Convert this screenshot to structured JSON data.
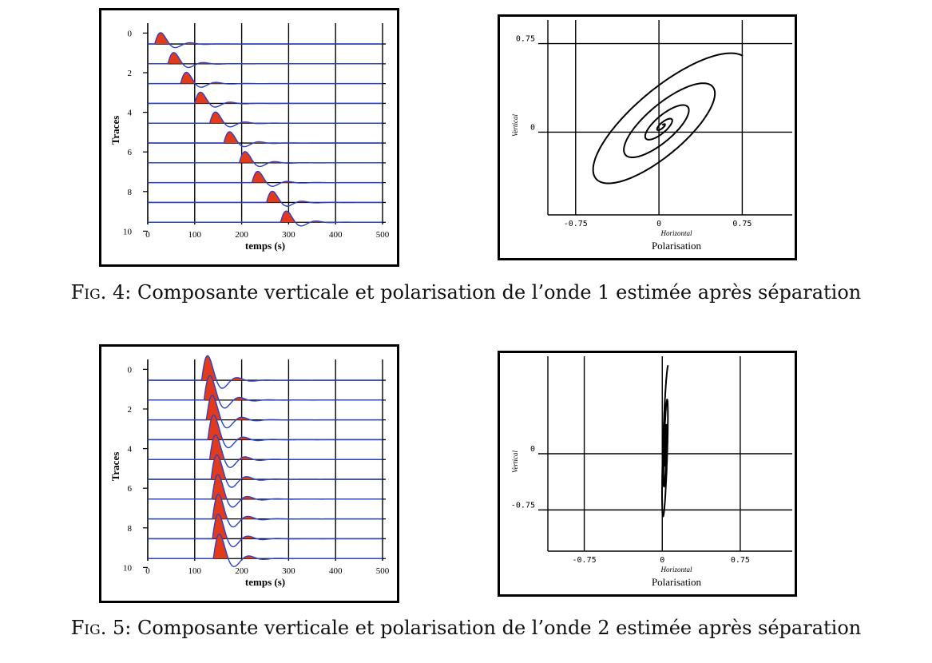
{
  "figures": [
    {
      "caption_prefix": "Fig. 4:",
      "caption_text": "Composante verticale et polarisation de l’onde 1 estimée après séparation"
    },
    {
      "caption_prefix": "Fig. 5:",
      "caption_text": "Composante verticale et polarisation de l’onde 2 estimée après séparation"
    }
  ],
  "colors": {
    "trace": "#2a43c8",
    "fill": "#e23a1a",
    "axis": "#000000"
  },
  "chart_data": [
    {
      "type": "line",
      "panel": "fig4-traces",
      "xlabel": "temps (s)",
      "ylabel": "Traces",
      "xlim": [
        0,
        500
      ],
      "ylim": [
        0,
        10
      ],
      "x_ticks": [
        "0",
        "100",
        "200",
        "300",
        "400",
        "500"
      ],
      "y_ticks": [
        "0",
        "2",
        "4",
        "6",
        "8",
        "10"
      ],
      "grid": true,
      "n_traces": 10,
      "trace_onsets_s": [
        15,
        43,
        70,
        100,
        132,
        162,
        195,
        222,
        253,
        283
      ],
      "pulse_amplitude": 1.1
    },
    {
      "type": "line",
      "panel": "fig4-polarisation",
      "title": "Polarisation",
      "xlabel": "Horizontal",
      "ylabel": "Vertical",
      "x_ticks": [
        "-0.75",
        "0",
        "0.75"
      ],
      "y_ticks": [
        "0",
        "0.75"
      ],
      "xlim": [
        -1.0,
        1.2
      ],
      "ylim": [
        -0.7,
        0.95
      ],
      "grid": true,
      "ellipse_orientation_deg": 45
    },
    {
      "type": "line",
      "panel": "fig5-traces",
      "xlabel": "temps (s)",
      "ylabel": "Traces",
      "xlim": [
        0,
        500
      ],
      "ylim": [
        0,
        10
      ],
      "x_ticks": [
        "0",
        "100",
        "200",
        "300",
        "400",
        "500"
      ],
      "y_ticks": [
        "0",
        "2",
        "4",
        "6",
        "8",
        "10"
      ],
      "grid": true,
      "n_traces": 10,
      "trace_onsets_s": [
        115,
        120,
        125,
        128,
        132,
        135,
        137,
        138,
        138,
        140
      ],
      "pulse_amplitude": 2.4
    },
    {
      "type": "line",
      "panel": "fig5-polarisation",
      "title": "Polarisation",
      "xlabel": "Horizontal",
      "ylabel": "Vertical",
      "x_ticks": [
        "-0.75",
        "0",
        "0.75"
      ],
      "y_ticks": [
        "0",
        "-0.75"
      ],
      "xlim": [
        -1.1,
        1.25
      ],
      "ylim": [
        -1.3,
        1.3
      ],
      "grid": true,
      "ellipse_orientation_deg": 85
    }
  ]
}
